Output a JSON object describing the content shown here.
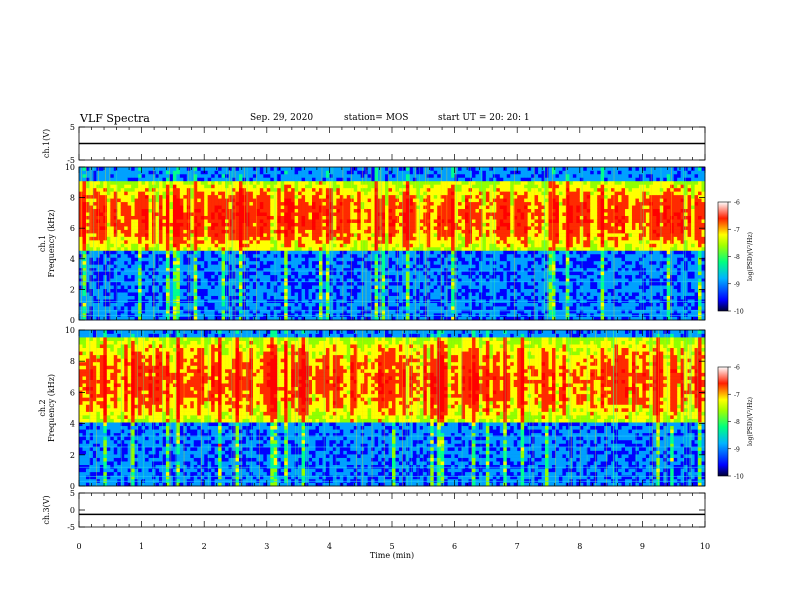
{
  "header": {
    "title": "VLF Spectra",
    "date": "Sep. 29, 2020",
    "station": "station= MOS",
    "start": "start UT =  20: 20: 1"
  },
  "chart_data": [
    {
      "type": "line",
      "ylabel": "ch.1(V)",
      "ylim": [
        -5,
        5
      ],
      "yticks": [
        "5",
        "-5"
      ],
      "x": [
        0,
        10
      ],
      "values": [
        0,
        0
      ]
    },
    {
      "type": "heatmap",
      "ylabel": "ch.1\nFrequency (kHz)",
      "ylim": [
        0,
        10
      ],
      "yticks": [
        "0",
        "2",
        "4",
        "6",
        "8",
        "10"
      ],
      "colorbar": {
        "label": "log(PSD)(V²/Hz)",
        "range": [
          -10,
          -6
        ],
        "ticks": [
          "-6",
          "-7",
          "-8",
          "-9",
          "-10"
        ]
      },
      "description_bands_kHz": {
        "strong_band": [
          4.5,
          9.0
        ],
        "peak_level": -6.5
      }
    },
    {
      "type": "heatmap",
      "ylabel": "ch.2\nFrequency (kHz)",
      "ylim": [
        0,
        10
      ],
      "yticks": [
        "0",
        "2",
        "4",
        "6",
        "8",
        "10"
      ],
      "colorbar": {
        "label": "log(PSD)(V²/Hz)",
        "range": [
          -10,
          -6
        ],
        "ticks": [
          "-6",
          "-7",
          "-8",
          "-9",
          "-10"
        ]
      },
      "description_bands_kHz": {
        "strong_band": [
          4.0,
          9.5
        ],
        "peak_level": -6.2
      }
    },
    {
      "type": "line",
      "ylabel": "ch.3(V)",
      "ylim": [
        -5,
        5
      ],
      "yticks": [
        "5",
        "0",
        "-5"
      ],
      "x": [
        0,
        10
      ],
      "values": [
        -1.3,
        -1.3
      ]
    }
  ],
  "xaxis": {
    "label": "Time (min)",
    "range": [
      0,
      10
    ],
    "ticks": [
      "0",
      "1",
      "2",
      "3",
      "4",
      "5",
      "6",
      "7",
      "8",
      "9",
      "10"
    ]
  }
}
